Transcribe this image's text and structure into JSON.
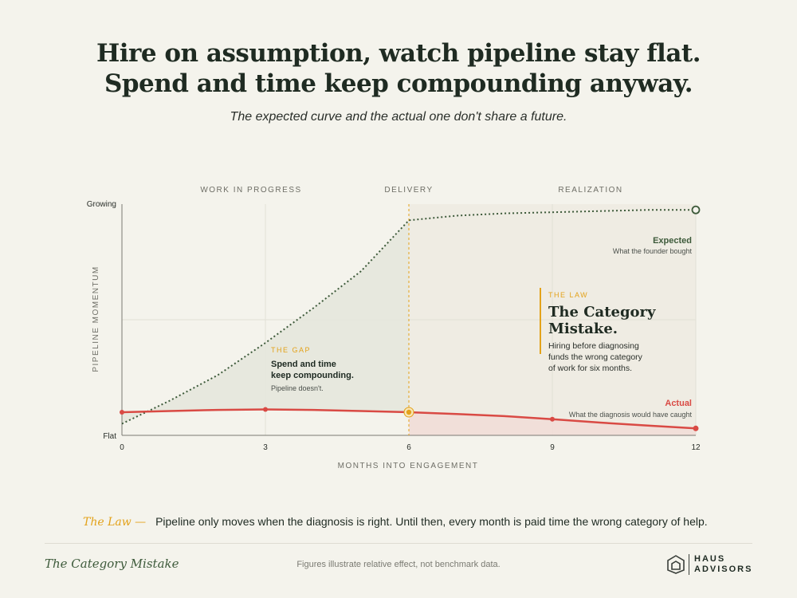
{
  "header": {
    "title_line1": "Hire on assumption, watch pipeline stay flat.",
    "title_line2": "Spend and time keep compounding anyway.",
    "subtitle": "The expected curve and the actual one don't share a future."
  },
  "chart_data": {
    "type": "line",
    "xlabel": "MONTHS INTO ENGAGEMENT",
    "ylabel": "PIPELINE MOMENTUM",
    "x_ticks": [
      "0",
      "3",
      "6",
      "9",
      "12"
    ],
    "xlim": [
      0,
      12
    ],
    "y_ticks": [
      "Flat",
      "Growing"
    ],
    "ylim": [
      0,
      100
    ],
    "grid": true,
    "phases": [
      "WORK IN PROGRESS",
      "DELIVERY",
      "REALIZATION"
    ],
    "series": [
      {
        "name": "Expected",
        "caption": "What the founder bought",
        "style": "dotted",
        "color": "#3d5a3a",
        "x": [
          0,
          1,
          2,
          3,
          4,
          5,
          6,
          7,
          8,
          9,
          10,
          11,
          12
        ],
        "y": [
          5,
          15,
          26,
          40,
          55,
          71,
          93,
          95,
          96,
          96.5,
          97,
          97.5,
          97.5
        ]
      },
      {
        "name": "Actual",
        "caption": "What the diagnosis would have caught",
        "style": "solid",
        "color": "#d94a44",
        "x": [
          0,
          1,
          2,
          3,
          4,
          5,
          6,
          7,
          8,
          9,
          10,
          11,
          12
        ],
        "y": [
          10,
          10.5,
          11,
          11.2,
          11,
          10.5,
          10,
          9.2,
          8.3,
          7,
          5.5,
          4.2,
          3
        ]
      }
    ],
    "marked_point": {
      "series": "Actual",
      "x": 6
    },
    "gap_annotation": {
      "label": "THE GAP",
      "headline": "Spend and time keep compounding.",
      "note": "Pipeline doesn't."
    },
    "law_callout": {
      "label": "THE LAW",
      "title": "The Category Mistake.",
      "body": "Hiring before diagnosing funds the wrong category of work for six months."
    }
  },
  "law_line": {
    "prefix": "The Law —",
    "text": "Pipeline only moves when the diagnosis is right. Until then, every month is paid time the wrong category of help."
  },
  "footer": {
    "title": "The Category Mistake",
    "note": "Figures illustrate relative effect, not benchmark data.",
    "brand_line1": "HAUS",
    "brand_line2": "ADVISORS"
  },
  "colors": {
    "background": "#f4f3ec",
    "expected": "#3d5a3a",
    "actual": "#d94a44",
    "accent": "#e3a21a"
  },
  "icons": {
    "brand_logo": "house-outline-icon"
  }
}
